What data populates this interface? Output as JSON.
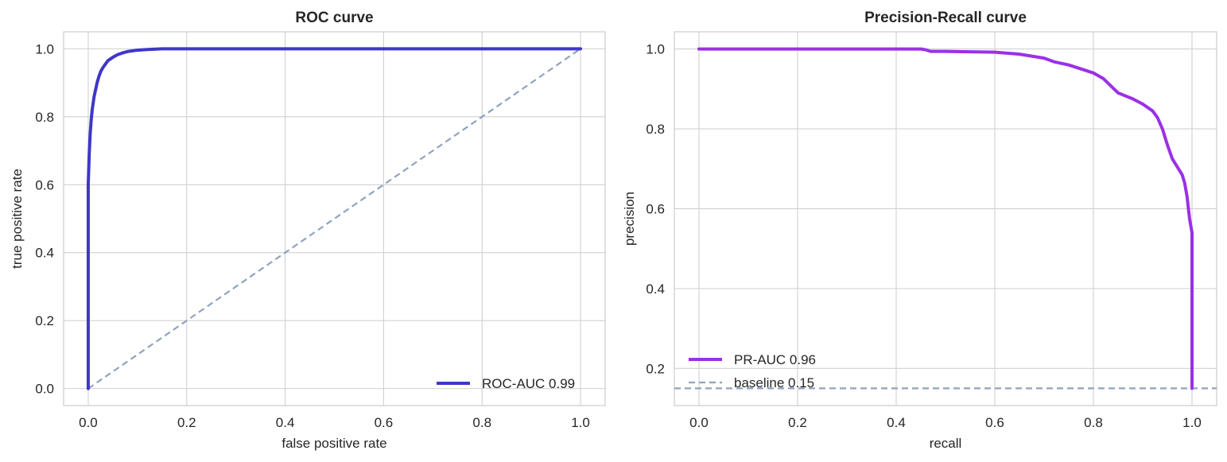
{
  "chart_data": [
    {
      "type": "line",
      "title": "ROC curve",
      "xlabel": "false positive rate",
      "ylabel": "true positive rate",
      "xlim": [
        -0.05,
        1.05
      ],
      "ylim": [
        -0.05,
        1.05
      ],
      "xticks": [
        "0.0",
        "0.2",
        "0.4",
        "0.6",
        "0.8",
        "1.0"
      ],
      "yticks": [
        "0.0",
        "0.2",
        "0.4",
        "0.6",
        "0.8",
        "1.0"
      ],
      "grid": true,
      "legend_position": "lower-right",
      "series": [
        {
          "name": "ROC-AUC 0.99",
          "color": "#3f37c9",
          "style": "solid",
          "x": [
            0.0,
            0.0,
            0.002,
            0.004,
            0.006,
            0.008,
            0.01,
            0.012,
            0.015,
            0.018,
            0.022,
            0.026,
            0.03,
            0.035,
            0.04,
            0.05,
            0.06,
            0.07,
            0.08,
            0.1,
            0.12,
            0.15,
            0.2,
            0.4,
            0.6,
            0.8,
            1.0
          ],
          "y": [
            0.0,
            0.6,
            0.69,
            0.75,
            0.79,
            0.82,
            0.84,
            0.86,
            0.88,
            0.9,
            0.92,
            0.935,
            0.945,
            0.955,
            0.965,
            0.975,
            0.983,
            0.988,
            0.992,
            0.996,
            0.998,
            1.0,
            1.0,
            1.0,
            1.0,
            1.0,
            1.0
          ]
        },
        {
          "name": "",
          "color": "#8fa3bf",
          "style": "dashed",
          "x": [
            0.0,
            1.0
          ],
          "y": [
            0.0,
            1.0
          ]
        }
      ]
    },
    {
      "type": "line",
      "title": "Precision-Recall curve",
      "xlabel": "recall",
      "ylabel": "precision",
      "xlim": [
        -0.05,
        1.05
      ],
      "ylim": [
        0.107,
        1.043
      ],
      "xticks": [
        "0.0",
        "0.2",
        "0.4",
        "0.6",
        "0.8",
        "1.0"
      ],
      "yticks": [
        "0.2",
        "0.4",
        "0.6",
        "0.8",
        "1.0"
      ],
      "grid": true,
      "legend_position": "lower-left",
      "series": [
        {
          "name": "PR-AUC 0.96",
          "color": "#9b30e6",
          "style": "solid",
          "x": [
            0.0,
            0.1,
            0.2,
            0.3,
            0.4,
            0.45,
            0.46,
            0.47,
            0.5,
            0.55,
            0.6,
            0.65,
            0.7,
            0.72,
            0.75,
            0.78,
            0.8,
            0.82,
            0.85,
            0.88,
            0.9,
            0.92,
            0.93,
            0.94,
            0.95,
            0.96,
            0.97,
            0.98,
            0.985,
            0.99,
            0.995,
            1.0,
            1.0
          ],
          "y": [
            1.0,
            1.0,
            1.0,
            1.0,
            1.0,
            1.0,
            0.998,
            0.994,
            0.994,
            0.993,
            0.992,
            0.987,
            0.977,
            0.968,
            0.96,
            0.948,
            0.94,
            0.926,
            0.89,
            0.875,
            0.862,
            0.845,
            0.828,
            0.8,
            0.76,
            0.725,
            0.705,
            0.685,
            0.665,
            0.63,
            0.575,
            0.54,
            0.15
          ]
        },
        {
          "name": "baseline 0.15",
          "color": "#8fa3bf",
          "style": "dashed",
          "x": [
            -0.05,
            1.05
          ],
          "y": [
            0.15,
            0.15
          ]
        }
      ]
    }
  ]
}
